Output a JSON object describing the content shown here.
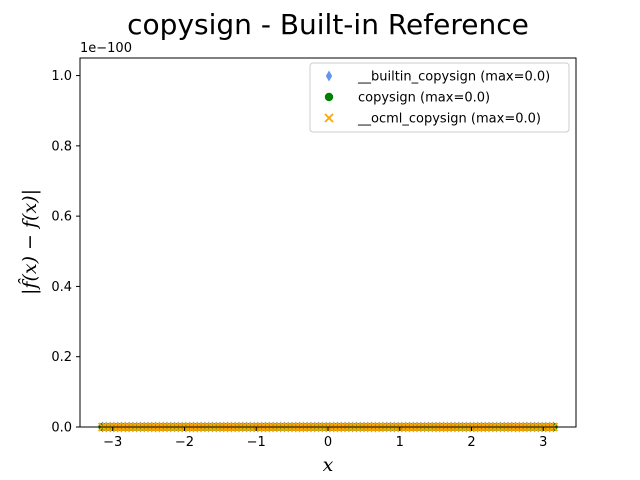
{
  "chart_data": {
    "type": "scatter",
    "title": "copysign - Built-in Reference",
    "xlabel": "x",
    "ylabel": "|f̂(x) − f(x)|",
    "offset_text": "1e−100",
    "xlim": [
      -3.4558,
      3.4558
    ],
    "ylim": [
      0,
      1.05
    ],
    "x_ticks": [
      -3,
      -2,
      -1,
      0,
      1,
      2,
      3
    ],
    "x_tick_labels": [
      "−3",
      "−2",
      "−1",
      "0",
      "1",
      "2",
      "3"
    ],
    "y_ticks": [
      0.0,
      0.2,
      0.4,
      0.6,
      0.8,
      1.0
    ],
    "y_tick_labels": [
      "0.0",
      "0.2",
      "0.4",
      "0.6",
      "0.8",
      "1.0"
    ],
    "x_range": [
      -3.14159,
      3.14159
    ],
    "n_points": 120,
    "grid": false,
    "legend_position": "top-right",
    "series": [
      {
        "name": "__builtin_copysign (max=0.0)",
        "marker": "diamond",
        "color": "#6495ED",
        "y_value": 0
      },
      {
        "name": "copysign (max=0.0)",
        "marker": "circle",
        "color": "#008000",
        "y_value": 0
      },
      {
        "name": "__ocml_copysign (max=0.0)",
        "marker": "x",
        "color": "#FFA500",
        "y_value": 0
      }
    ]
  }
}
